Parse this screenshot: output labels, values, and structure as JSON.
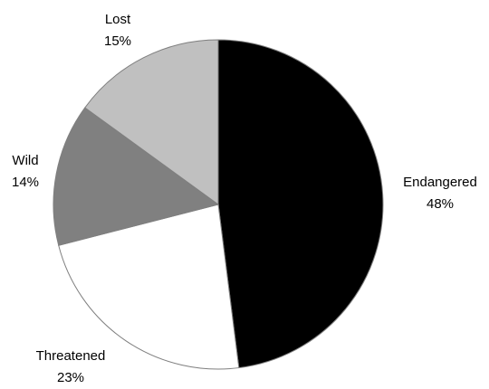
{
  "chart_data": {
    "type": "pie",
    "title": "",
    "slices": [
      {
        "name": "Endangered",
        "value": 48,
        "label": "48%",
        "color": "#000000"
      },
      {
        "name": "Threatened",
        "value": 23,
        "label": "23%",
        "color": "#ffffff"
      },
      {
        "name": "Wild",
        "value": 14,
        "label": "14%",
        "color": "#808080"
      },
      {
        "name": "Lost",
        "value": 15,
        "label": "15%",
        "color": "#c0c0c0"
      }
    ],
    "start_angle": "12 o'clock",
    "direction": "clockwise",
    "legend": "none"
  }
}
